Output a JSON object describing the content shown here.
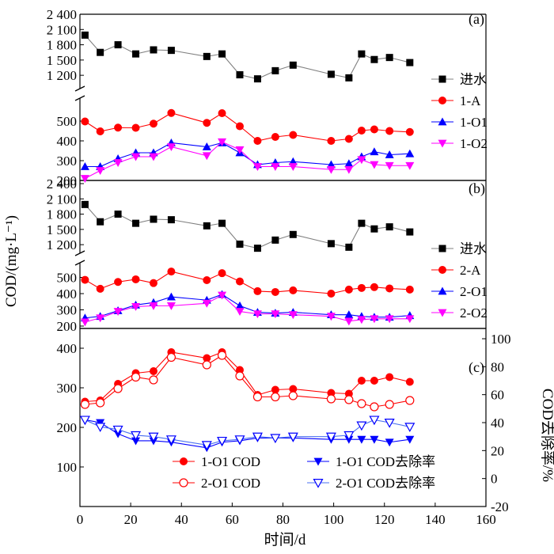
{
  "chart_data": [
    {
      "type": "line",
      "panel_label": "(a)",
      "broken_y_axis": true,
      "ylim_upper": [
        1000,
        2400
      ],
      "yticks_upper": [
        "2 400",
        "2 100",
        "1 800",
        "1 500",
        "1 200"
      ],
      "ylim_lower": [
        200,
        600
      ],
      "yticks_lower": [
        "500",
        "400",
        "300",
        "200"
      ],
      "xlim": [
        0,
        160
      ],
      "series": [
        {
          "name": "进水",
          "marker": "square",
          "color": "#000000",
          "line_color": "#808080",
          "x": [
            2,
            8,
            15,
            22,
            29,
            36,
            50,
            56,
            63,
            70,
            77,
            84,
            99,
            106,
            111,
            116,
            122,
            130
          ],
          "y": [
            1990,
            1650,
            1800,
            1620,
            1700,
            1690,
            1570,
            1620,
            1210,
            1130,
            1290,
            1400,
            1220,
            1150,
            1620,
            1510,
            1550,
            1450
          ]
        },
        {
          "name": "1-A",
          "marker": "circle",
          "color": "#ff0000",
          "line_color": "#ff0000",
          "x": [
            2,
            8,
            15,
            22,
            29,
            36,
            50,
            56,
            63,
            70,
            77,
            84,
            99,
            106,
            111,
            116,
            122,
            130
          ],
          "y": [
            498,
            448,
            467,
            466,
            487,
            541,
            491,
            540,
            474,
            400,
            420,
            430,
            400,
            410,
            452,
            458,
            450,
            445
          ]
        },
        {
          "name": "1-O1",
          "marker": "triangle-up",
          "color": "#0000ff",
          "line_color": "#0000ff",
          "x": [
            2,
            8,
            15,
            22,
            29,
            36,
            50,
            56,
            63,
            70,
            77,
            84,
            99,
            106,
            111,
            116,
            122,
            130
          ],
          "y": [
            270,
            270,
            310,
            340,
            340,
            390,
            370,
            390,
            340,
            280,
            290,
            295,
            280,
            285,
            320,
            345,
            330,
            335
          ]
        },
        {
          "name": "1-O2",
          "marker": "triangle-down",
          "color": "#ff00ff",
          "line_color": "#ff00ff",
          "x": [
            2,
            8,
            15,
            22,
            29,
            36,
            50,
            56,
            63,
            70,
            77,
            84,
            99,
            106,
            111,
            116,
            122,
            130
          ],
          "y": [
            210,
            250,
            290,
            320,
            320,
            370,
            325,
            395,
            355,
            270,
            270,
            270,
            255,
            255,
            305,
            280,
            275,
            275
          ]
        }
      ]
    },
    {
      "type": "line",
      "panel_label": "(b)",
      "broken_y_axis": true,
      "ylim_upper": [
        1000,
        2400
      ],
      "yticks_upper": [
        "2 400",
        "2 100",
        "1 800",
        "1 500",
        "1 200"
      ],
      "ylim_lower": [
        200,
        600
      ],
      "yticks_lower": [
        "500",
        "400",
        "300",
        "200"
      ],
      "xlim": [
        0,
        160
      ],
      "series": [
        {
          "name": "进水",
          "marker": "square",
          "color": "#000000",
          "line_color": "#808080",
          "x": [
            2,
            8,
            15,
            22,
            29,
            36,
            50,
            56,
            63,
            70,
            77,
            84,
            99,
            106,
            111,
            116,
            122,
            130
          ],
          "y": [
            1990,
            1650,
            1800,
            1620,
            1700,
            1690,
            1570,
            1620,
            1210,
            1130,
            1290,
            1400,
            1220,
            1150,
            1620,
            1510,
            1550,
            1450
          ]
        },
        {
          "name": "2-A",
          "marker": "circle",
          "color": "#ff0000",
          "line_color": "#ff0000",
          "x": [
            2,
            8,
            15,
            22,
            29,
            36,
            50,
            56,
            63,
            70,
            77,
            84,
            99,
            106,
            111,
            116,
            122,
            130
          ],
          "y": [
            485,
            430,
            472,
            488,
            465,
            536,
            483,
            526,
            475,
            415,
            410,
            420,
            400,
            425,
            435,
            440,
            432,
            425
          ]
        },
        {
          "name": "2-O1",
          "marker": "triangle-up",
          "color": "#0000ff",
          "line_color": "#0000ff",
          "x": [
            2,
            8,
            15,
            22,
            29,
            36,
            50,
            56,
            63,
            70,
            77,
            84,
            99,
            106,
            111,
            116,
            122,
            130
          ],
          "y": [
            250,
            260,
            295,
            330,
            345,
            380,
            360,
            395,
            325,
            285,
            280,
            285,
            270,
            270,
            260,
            255,
            255,
            265
          ]
        },
        {
          "name": "2-O2",
          "marker": "triangle-down",
          "color": "#ff00ff",
          "line_color": "#ff00ff",
          "x": [
            2,
            8,
            15,
            22,
            29,
            36,
            50,
            56,
            63,
            70,
            77,
            84,
            99,
            106,
            111,
            116,
            122,
            130
          ],
          "y": [
            225,
            250,
            290,
            320,
            325,
            325,
            340,
            390,
            290,
            275,
            275,
            270,
            260,
            230,
            240,
            245,
            245,
            245
          ]
        }
      ]
    },
    {
      "type": "line",
      "panel_label": "(c)",
      "xlim": [
        0,
        160
      ],
      "xticks": [
        0,
        20,
        40,
        60,
        80,
        100,
        120,
        140,
        160
      ],
      "xlabel": "时间/d",
      "ylim_left": [
        0,
        450
      ],
      "yticks_left": [
        100,
        200,
        300,
        400
      ],
      "ylim_right": [
        -20,
        100
      ],
      "yticks_right": [
        -20,
        0,
        20,
        40,
        60,
        80,
        100
      ],
      "ylabel_right": "COD去除率/%",
      "series": [
        {
          "name": "1-O1 COD",
          "axis": "left",
          "marker": "circle-filled",
          "color": "#ff0000",
          "line_color": "#ff0000",
          "x": [
            2,
            8,
            15,
            22,
            29,
            36,
            50,
            56,
            63,
            70,
            77,
            84,
            99,
            106,
            111,
            116,
            122,
            130
          ],
          "y": [
            265,
            268,
            310,
            337,
            342,
            390,
            375,
            390,
            345,
            282,
            295,
            297,
            287,
            285,
            318,
            318,
            327,
            315
          ]
        },
        {
          "name": "2-O1 COD",
          "axis": "left",
          "marker": "circle-open",
          "color": "#ff0000",
          "line_color": "#ff0000",
          "x": [
            2,
            8,
            15,
            22,
            29,
            36,
            50,
            56,
            63,
            70,
            77,
            84,
            99,
            106,
            111,
            116,
            122,
            130
          ],
          "y": [
            258,
            262,
            298,
            327,
            320,
            377,
            358,
            382,
            330,
            277,
            277,
            280,
            272,
            270,
            260,
            252,
            258,
            268
          ]
        },
        {
          "name": "1-O1 COD去除率",
          "axis": "right",
          "marker": "triangle-down-filled",
          "color": "#0000ff",
          "line_color": "#0000ff",
          "x": [
            2,
            8,
            15,
            22,
            29,
            36,
            50,
            56,
            63,
            70,
            77,
            84,
            99,
            106,
            111,
            116,
            122,
            130
          ],
          "y": [
            42,
            40,
            32,
            27,
            27,
            26,
            22,
            26,
            27,
            29,
            29,
            29,
            28,
            28,
            28,
            28,
            26,
            28
          ]
        },
        {
          "name": "2-O1 COD去除率",
          "axis": "right",
          "marker": "triangle-down-open",
          "color": "#0000ff",
          "line_color": "#4a6ff0",
          "x": [
            2,
            8,
            15,
            22,
            29,
            36,
            50,
            56,
            63,
            70,
            77,
            84,
            99,
            106,
            111,
            116,
            122,
            130
          ],
          "y": [
            42,
            37,
            35,
            31,
            30,
            28,
            24,
            27,
            28,
            30,
            29,
            30,
            30,
            31,
            38,
            42,
            40,
            37
          ]
        }
      ]
    }
  ],
  "shared_ylabel": "COD/(mg·L⁻¹)"
}
